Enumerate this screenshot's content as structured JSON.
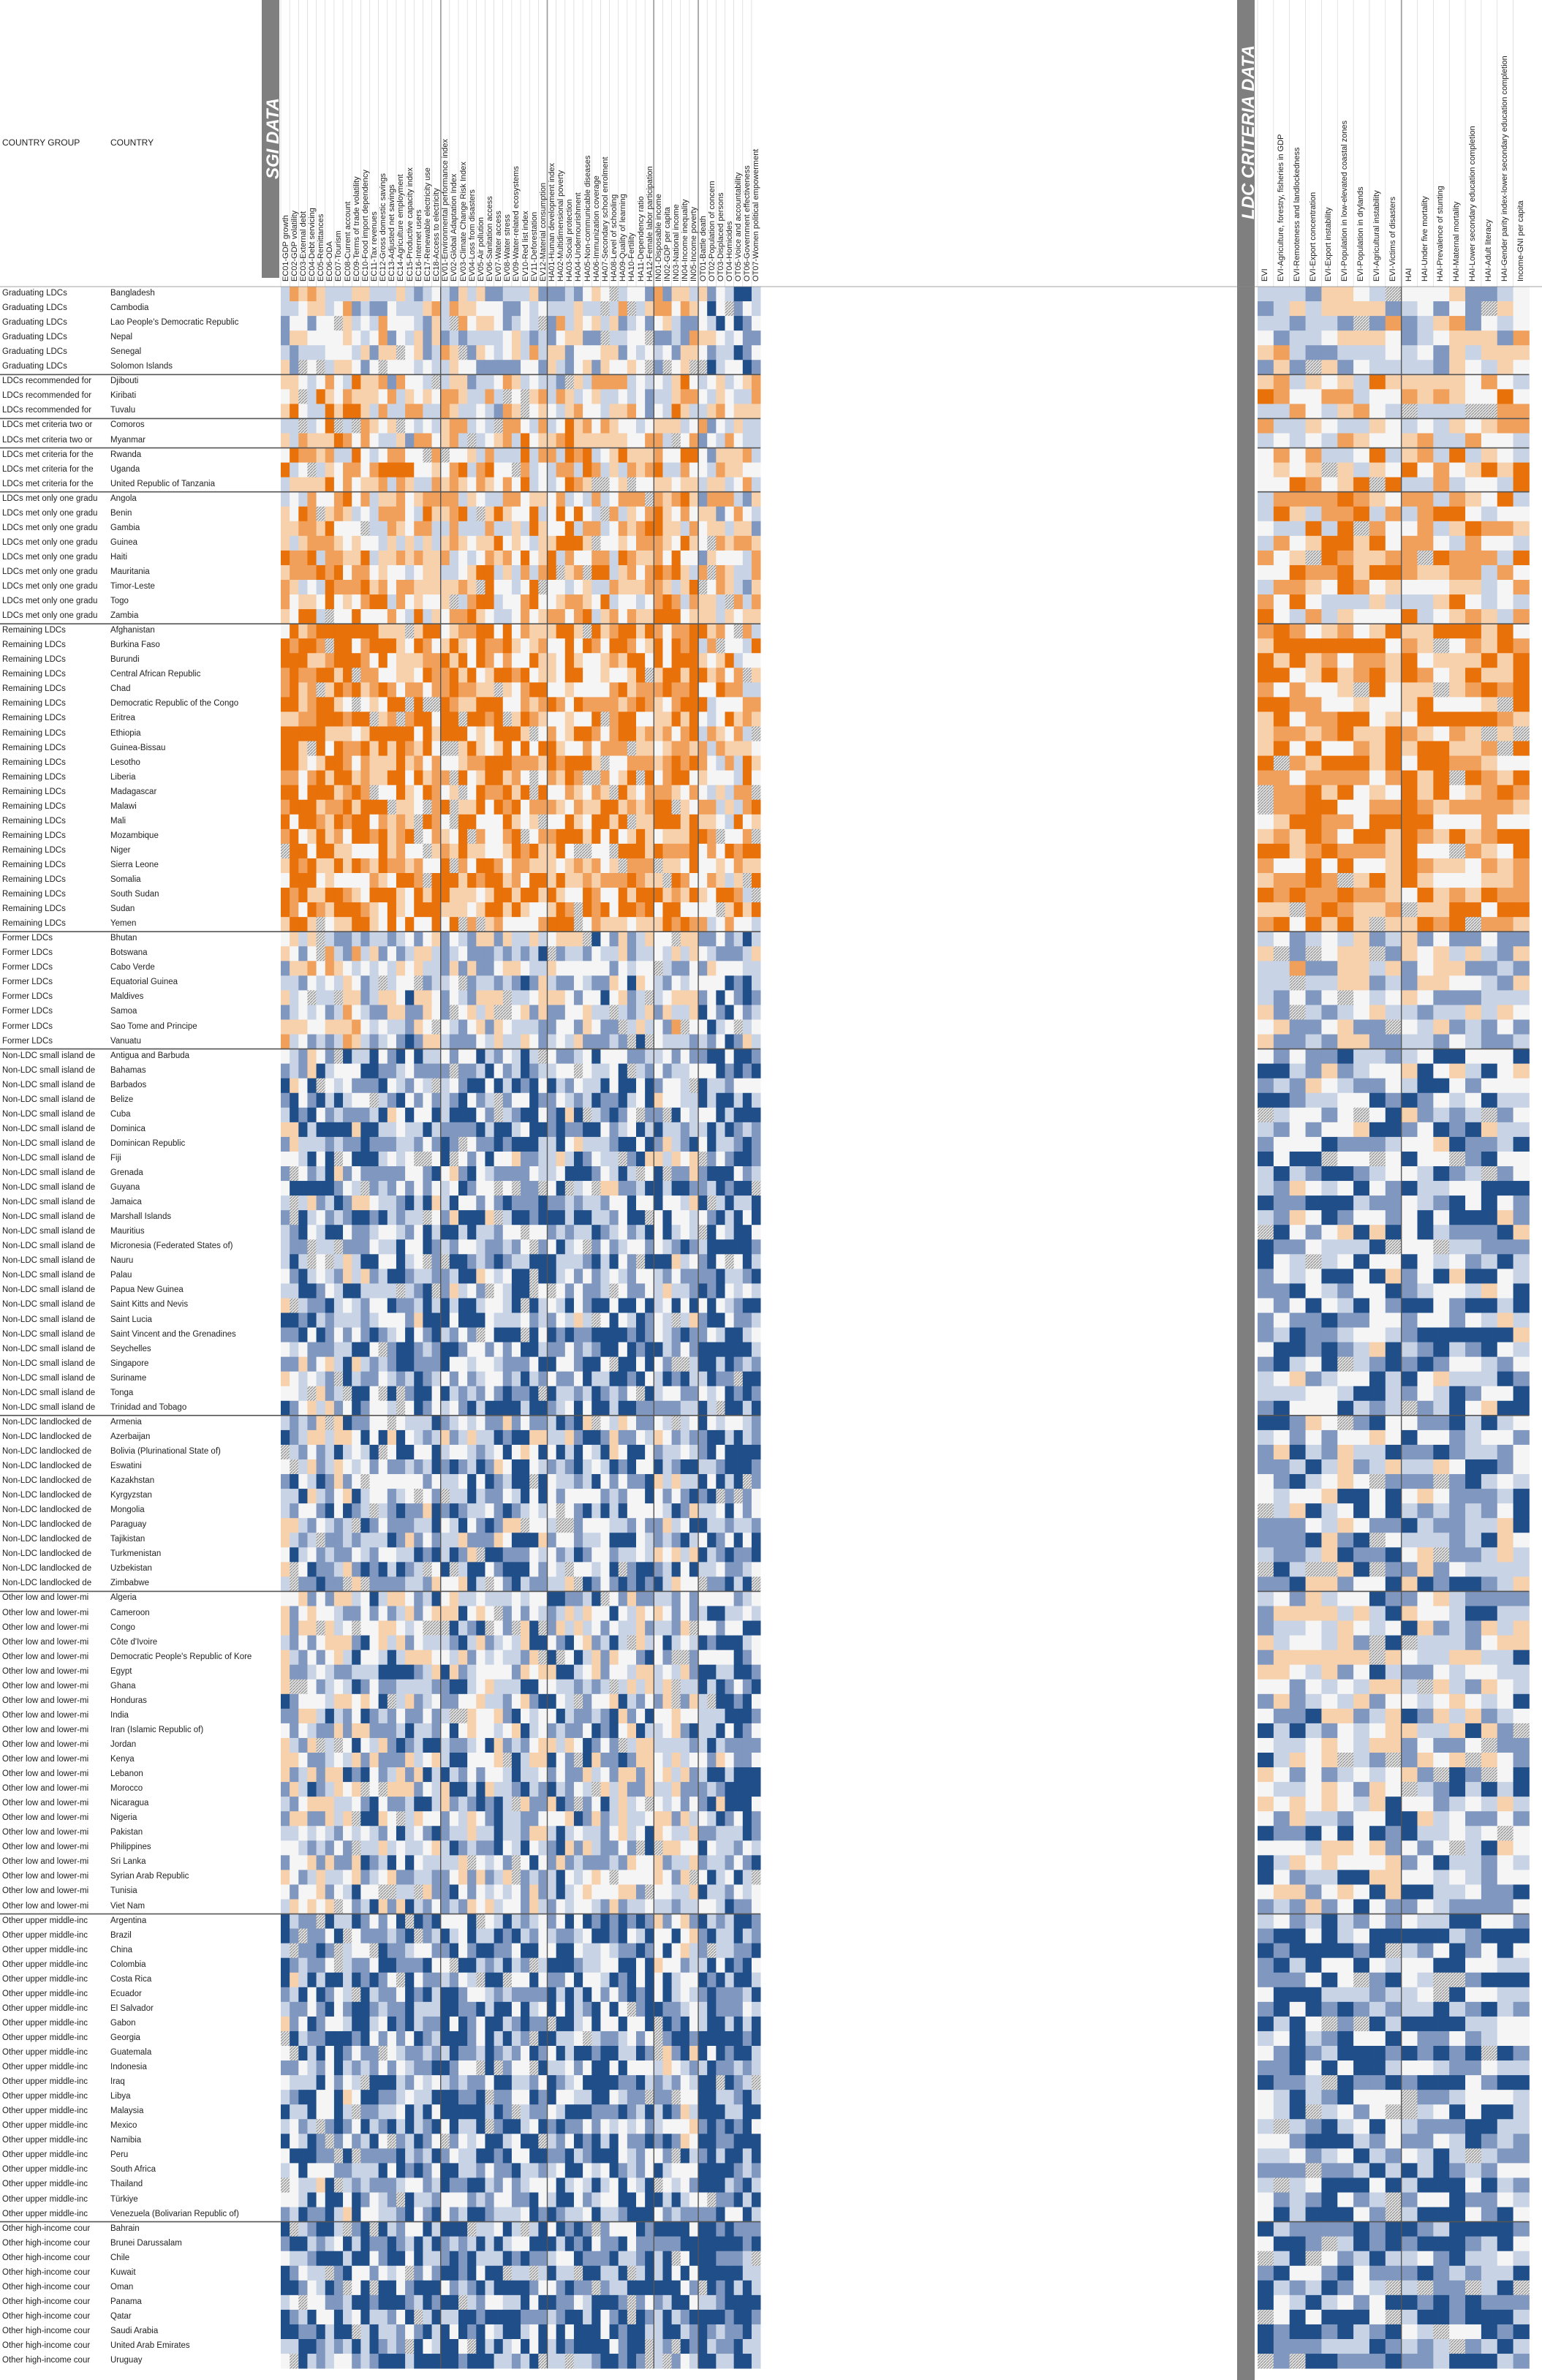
{
  "header": {
    "country_group_label": "COUNTRY GROUP",
    "country_label": "COUNTRY",
    "sgi_title": "SGI DATA",
    "ldc_title": "LDC CRITERIA DATA"
  },
  "chart_data": {
    "type": "heatmap",
    "title": "",
    "color_scale": {
      "dark_orange": "#e8710a",
      "mid_orange": "#f0a05a",
      "light_orange": "#f7d0ac",
      "pale": "#f5f5f5",
      "light_blue": "#c8d4e6",
      "mid_blue": "#8097bf",
      "dark_blue": "#1f4e89",
      "hatched_missing": "#c9c9c9"
    },
    "sgi_columns": [
      "EC01-GDP growth",
      "EC02-GDP volatility",
      "EC03-External debt",
      "EC04-Debt servicing",
      "EC05-Remittances",
      "EC06-ODA",
      "EC07-Tourism",
      "EC08-Current account",
      "EC09-Terms of trade volatility",
      "EC10-Food import dependency",
      "EC11-Tax revenues",
      "EC12-Gross domestic savings",
      "EC13-Adjusted net savings",
      "EC14-Agriculture employment",
      "EC15-Productive capacity index",
      "EC16-Internet users",
      "EC17-Renewable electricity use",
      "EC18-Access to electricity",
      "EV01-Environmental performance index",
      "EV02-Global Adaptation Index",
      "EV03-Climate Change Risk Index",
      "EV04-Loss from disasters",
      "EV05-Air pollution",
      "EV06-Sanitation access",
      "EV07-Water access",
      "EV08-Water stress",
      "EV09-Water-related ecosystems",
      "EV10-Red list index",
      "EV11-Deforestation",
      "EV12-Material consumption",
      "HA01-Human development index",
      "HA02-Multidimensional poverty",
      "HA03-Social protection",
      "HA04-Undernourishment",
      "HA05-Non-communicable diseases",
      "HA06-Immunization coverage",
      "HA07-Secondary school enrolment",
      "HA08-Level of schooling",
      "HA09-Quality of learning",
      "HA10-Fertility",
      "HA11-Dependency ratio",
      "HA12-Female labor participation",
      "IN01-Disposable income",
      "IN02-GDP per capita",
      "IN03-National income",
      "IN04-Income inequality",
      "IN05-Income poverty",
      "OT01-Battle death",
      "OT02-Population of concern",
      "OT03-Displaced persons",
      "OT04-Homicides",
      "OT05-Voice and accountability",
      "OT06-Government effectiveness",
      "OT07-Women political empowerment"
    ],
    "ldc_columns": [
      "EVI",
      "EVI-Agriculture, forestry, fisheries in GDP",
      "EVI-Remoteness and landlockedness",
      "EVI-Export concentration",
      "EVI-Export instability",
      "EVI-Population in low-elevated coastal zones",
      "EVI-Population in drylands",
      "EVI-Agricultural instability",
      "EVI-Victims of disasters",
      "HAI",
      "HAI-Under five mortality",
      "HAI-Prevalence of stunting",
      "HAI-Maternal mortality",
      "HAI-Lower secondary education completion",
      "HAI-Adult literacy",
      "HAI-Gender parity index-lower secondary education completion",
      "Income-GNI per capita"
    ],
    "rows": [
      {
        "group": "Graduating LDCs",
        "country": "Bangladesh"
      },
      {
        "group": "Graduating LDCs",
        "country": "Cambodia"
      },
      {
        "group": "Graduating LDCs",
        "country": "Lao People's Democratic Republic"
      },
      {
        "group": "Graduating LDCs",
        "country": "Nepal"
      },
      {
        "group": "Graduating LDCs",
        "country": "Senegal"
      },
      {
        "group": "Graduating LDCs",
        "country": "Solomon Islands"
      },
      {
        "group": "LDCs recommended for",
        "country": "Djibouti"
      },
      {
        "group": "LDCs recommended for",
        "country": "Kiribati"
      },
      {
        "group": "LDCs recommended for",
        "country": "Tuvalu"
      },
      {
        "group": "LDCs met criteria two or",
        "country": "Comoros"
      },
      {
        "group": "LDCs met criteria two or",
        "country": "Myanmar"
      },
      {
        "group": "LDCs met criteria for the",
        "country": "Rwanda"
      },
      {
        "group": "LDCs met criteria for the",
        "country": "Uganda"
      },
      {
        "group": "LDCs met criteria for the",
        "country": "United Republic of Tanzania"
      },
      {
        "group": "LDCs met only one gradu",
        "country": "Angola"
      },
      {
        "group": "LDCs met only one gradu",
        "country": "Benin"
      },
      {
        "group": "LDCs met only one gradu",
        "country": "Gambia"
      },
      {
        "group": "LDCs met only one gradu",
        "country": "Guinea"
      },
      {
        "group": "LDCs met only one gradu",
        "country": "Haiti"
      },
      {
        "group": "LDCs met only one gradu",
        "country": "Mauritania"
      },
      {
        "group": "LDCs met only one gradu",
        "country": "Timor-Leste"
      },
      {
        "group": "LDCs met only one gradu",
        "country": "Togo"
      },
      {
        "group": "LDCs met only one gradu",
        "country": "Zambia"
      },
      {
        "group": "Remaining LDCs",
        "country": "Afghanistan"
      },
      {
        "group": "Remaining LDCs",
        "country": "Burkina Faso"
      },
      {
        "group": "Remaining LDCs",
        "country": "Burundi"
      },
      {
        "group": "Remaining LDCs",
        "country": "Central African Republic"
      },
      {
        "group": "Remaining LDCs",
        "country": "Chad"
      },
      {
        "group": "Remaining LDCs",
        "country": "Democratic Republic of the Congo"
      },
      {
        "group": "Remaining LDCs",
        "country": "Eritrea"
      },
      {
        "group": "Remaining LDCs",
        "country": "Ethiopia"
      },
      {
        "group": "Remaining LDCs",
        "country": "Guinea-Bissau"
      },
      {
        "group": "Remaining LDCs",
        "country": "Lesotho"
      },
      {
        "group": "Remaining LDCs",
        "country": "Liberia"
      },
      {
        "group": "Remaining LDCs",
        "country": "Madagascar"
      },
      {
        "group": "Remaining LDCs",
        "country": "Malawi"
      },
      {
        "group": "Remaining LDCs",
        "country": "Mali"
      },
      {
        "group": "Remaining LDCs",
        "country": "Mozambique"
      },
      {
        "group": "Remaining LDCs",
        "country": "Niger"
      },
      {
        "group": "Remaining LDCs",
        "country": "Sierra Leone"
      },
      {
        "group": "Remaining LDCs",
        "country": "Somalia"
      },
      {
        "group": "Remaining LDCs",
        "country": "South Sudan"
      },
      {
        "group": "Remaining LDCs",
        "country": "Sudan"
      },
      {
        "group": "Remaining LDCs",
        "country": "Yemen"
      },
      {
        "group": "Former LDCs",
        "country": "Bhutan"
      },
      {
        "group": "Former LDCs",
        "country": "Botswana"
      },
      {
        "group": "Former LDCs",
        "country": "Cabo Verde"
      },
      {
        "group": "Former LDCs",
        "country": "Equatorial Guinea"
      },
      {
        "group": "Former LDCs",
        "country": "Maldives"
      },
      {
        "group": "Former LDCs",
        "country": "Samoa"
      },
      {
        "group": "Former LDCs",
        "country": "Sao Tome and Principe"
      },
      {
        "group": "Former LDCs",
        "country": "Vanuatu"
      },
      {
        "group": "Non-LDC small island de",
        "country": "Antigua and Barbuda"
      },
      {
        "group": "Non-LDC small island de",
        "country": "Bahamas"
      },
      {
        "group": "Non-LDC small island de",
        "country": "Barbados"
      },
      {
        "group": "Non-LDC small island de",
        "country": "Belize"
      },
      {
        "group": "Non-LDC small island de",
        "country": "Cuba"
      },
      {
        "group": "Non-LDC small island de",
        "country": "Dominica"
      },
      {
        "group": "Non-LDC small island de",
        "country": "Dominican Republic"
      },
      {
        "group": "Non-LDC small island de",
        "country": "Fiji"
      },
      {
        "group": "Non-LDC small island de",
        "country": "Grenada"
      },
      {
        "group": "Non-LDC small island de",
        "country": "Guyana"
      },
      {
        "group": "Non-LDC small island de",
        "country": "Jamaica"
      },
      {
        "group": "Non-LDC small island de",
        "country": "Marshall Islands"
      },
      {
        "group": "Non-LDC small island de",
        "country": "Mauritius"
      },
      {
        "group": "Non-LDC small island de",
        "country": "Micronesia (Federated States of)"
      },
      {
        "group": "Non-LDC small island de",
        "country": "Nauru"
      },
      {
        "group": "Non-LDC small island de",
        "country": "Palau"
      },
      {
        "group": "Non-LDC small island de",
        "country": "Papua New Guinea"
      },
      {
        "group": "Non-LDC small island de",
        "country": "Saint Kitts and Nevis"
      },
      {
        "group": "Non-LDC small island de",
        "country": "Saint Lucia"
      },
      {
        "group": "Non-LDC small island de",
        "country": "Saint Vincent and the Grenadines"
      },
      {
        "group": "Non-LDC small island de",
        "country": "Seychelles"
      },
      {
        "group": "Non-LDC small island de",
        "country": "Singapore"
      },
      {
        "group": "Non-LDC small island de",
        "country": "Suriname"
      },
      {
        "group": "Non-LDC small island de",
        "country": "Tonga"
      },
      {
        "group": "Non-LDC small island de",
        "country": "Trinidad and Tobago"
      },
      {
        "group": "Non-LDC landlocked de",
        "country": "Armenia"
      },
      {
        "group": "Non-LDC landlocked de",
        "country": "Azerbaijan"
      },
      {
        "group": "Non-LDC landlocked de",
        "country": "Bolivia (Plurinational State of)"
      },
      {
        "group": "Non-LDC landlocked de",
        "country": "Eswatini"
      },
      {
        "group": "Non-LDC landlocked de",
        "country": "Kazakhstan"
      },
      {
        "group": "Non-LDC landlocked de",
        "country": "Kyrgyzstan"
      },
      {
        "group": "Non-LDC landlocked de",
        "country": "Mongolia"
      },
      {
        "group": "Non-LDC landlocked de",
        "country": "Paraguay"
      },
      {
        "group": "Non-LDC landlocked de",
        "country": "Tajikistan"
      },
      {
        "group": "Non-LDC landlocked de",
        "country": "Turkmenistan"
      },
      {
        "group": "Non-LDC landlocked de",
        "country": "Uzbekistan"
      },
      {
        "group": "Non-LDC landlocked de",
        "country": "Zimbabwe"
      },
      {
        "group": "Other low and lower-mi",
        "country": "Algeria"
      },
      {
        "group": "Other low and lower-mi",
        "country": "Cameroon"
      },
      {
        "group": "Other low and lower-mi",
        "country": "Congo"
      },
      {
        "group": "Other low and lower-mi",
        "country": "Côte d'Ivoire"
      },
      {
        "group": "Other low and lower-mi",
        "country": "Democratic People's Republic of Kore"
      },
      {
        "group": "Other low and lower-mi",
        "country": "Egypt"
      },
      {
        "group": "Other low and lower-mi",
        "country": "Ghana"
      },
      {
        "group": "Other low and lower-mi",
        "country": "Honduras"
      },
      {
        "group": "Other low and lower-mi",
        "country": "India"
      },
      {
        "group": "Other low and lower-mi",
        "country": "Iran (Islamic Republic of)"
      },
      {
        "group": "Other low and lower-mi",
        "country": "Jordan"
      },
      {
        "group": "Other low and lower-mi",
        "country": "Kenya"
      },
      {
        "group": "Other low and lower-mi",
        "country": "Lebanon"
      },
      {
        "group": "Other low and lower-mi",
        "country": "Morocco"
      },
      {
        "group": "Other low and lower-mi",
        "country": "Nicaragua"
      },
      {
        "group": "Other low and lower-mi",
        "country": "Nigeria"
      },
      {
        "group": "Other low and lower-mi",
        "country": "Pakistan"
      },
      {
        "group": "Other low and lower-mi",
        "country": "Philippines"
      },
      {
        "group": "Other low and lower-mi",
        "country": "Sri Lanka"
      },
      {
        "group": "Other low and lower-mi",
        "country": "Syrian Arab Republic"
      },
      {
        "group": "Other low and lower-mi",
        "country": "Tunisia"
      },
      {
        "group": "Other low and lower-mi",
        "country": "Viet Nam"
      },
      {
        "group": "Other upper middle-inc",
        "country": "Argentina"
      },
      {
        "group": "Other upper middle-inc",
        "country": "Brazil"
      },
      {
        "group": "Other upper middle-inc",
        "country": "China"
      },
      {
        "group": "Other upper middle-inc",
        "country": "Colombia"
      },
      {
        "group": "Other upper middle-inc",
        "country": "Costa Rica"
      },
      {
        "group": "Other upper middle-inc",
        "country": "Ecuador"
      },
      {
        "group": "Other upper middle-inc",
        "country": "El Salvador"
      },
      {
        "group": "Other upper middle-inc",
        "country": "Gabon"
      },
      {
        "group": "Other upper middle-inc",
        "country": "Georgia"
      },
      {
        "group": "Other upper middle-inc",
        "country": "Guatemala"
      },
      {
        "group": "Other upper middle-inc",
        "country": "Indonesia"
      },
      {
        "group": "Other upper middle-inc",
        "country": "Iraq"
      },
      {
        "group": "Other upper middle-inc",
        "country": "Libya"
      },
      {
        "group": "Other upper middle-inc",
        "country": "Malaysia"
      },
      {
        "group": "Other upper middle-inc",
        "country": "Mexico"
      },
      {
        "group": "Other upper middle-inc",
        "country": "Namibia"
      },
      {
        "group": "Other upper middle-inc",
        "country": "Peru"
      },
      {
        "group": "Other upper middle-inc",
        "country": "South Africa"
      },
      {
        "group": "Other upper middle-inc",
        "country": "Thailand"
      },
      {
        "group": "Other upper middle-inc",
        "country": "Türkiye"
      },
      {
        "group": "Other upper middle-inc",
        "country": "Venezuela (Bolivarian Republic of)"
      },
      {
        "group": "Other high-income cour",
        "country": "Bahrain"
      },
      {
        "group": "Other high-income cour",
        "country": "Brunei Darussalam"
      },
      {
        "group": "Other high-income cour",
        "country": "Chile"
      },
      {
        "group": "Other high-income cour",
        "country": "Kuwait"
      },
      {
        "group": "Other high-income cour",
        "country": "Oman"
      },
      {
        "group": "Other high-income cour",
        "country": "Panama"
      },
      {
        "group": "Other high-income cour",
        "country": "Qatar"
      },
      {
        "group": "Other high-income cour",
        "country": "Saudi Arabia"
      },
      {
        "group": "Other high-income cour",
        "country": "United Arab Emirates"
      },
      {
        "group": "Other high-income cour",
        "country": "Uruguay"
      }
    ],
    "row_group_breaks_after_index": [
      5,
      8,
      10,
      13,
      22,
      43,
      51,
      76,
      88,
      110,
      131
    ],
    "sgi_column_group_breaks_after_index": [
      17,
      29,
      41,
      46
    ],
    "ldc_column_group_breaks_after_index": [
      8
    ],
    "cell_values_note": "Cell colour levels by group intensity (0=dark blue ... 6=dark orange, 7=hatched missing)",
    "group_intensity": {
      "Graduating LDCs": 2.6,
      "LDCs recommended for": 3.5,
      "LDCs met criteria two or": 3.5,
      "LDCs met criteria for the": 3.8,
      "LDCs met only one gradu": 3.8,
      "Remaining LDCs": 4.7,
      "Former LDCs": 2.4,
      "Non-LDC small island de": 1.5,
      "Non-LDC landlocked de": 1.7,
      "Other low and lower-mi": 2.1,
      "Other upper middle-inc": 1.3,
      "Other high-income cour": 0.9
    }
  }
}
